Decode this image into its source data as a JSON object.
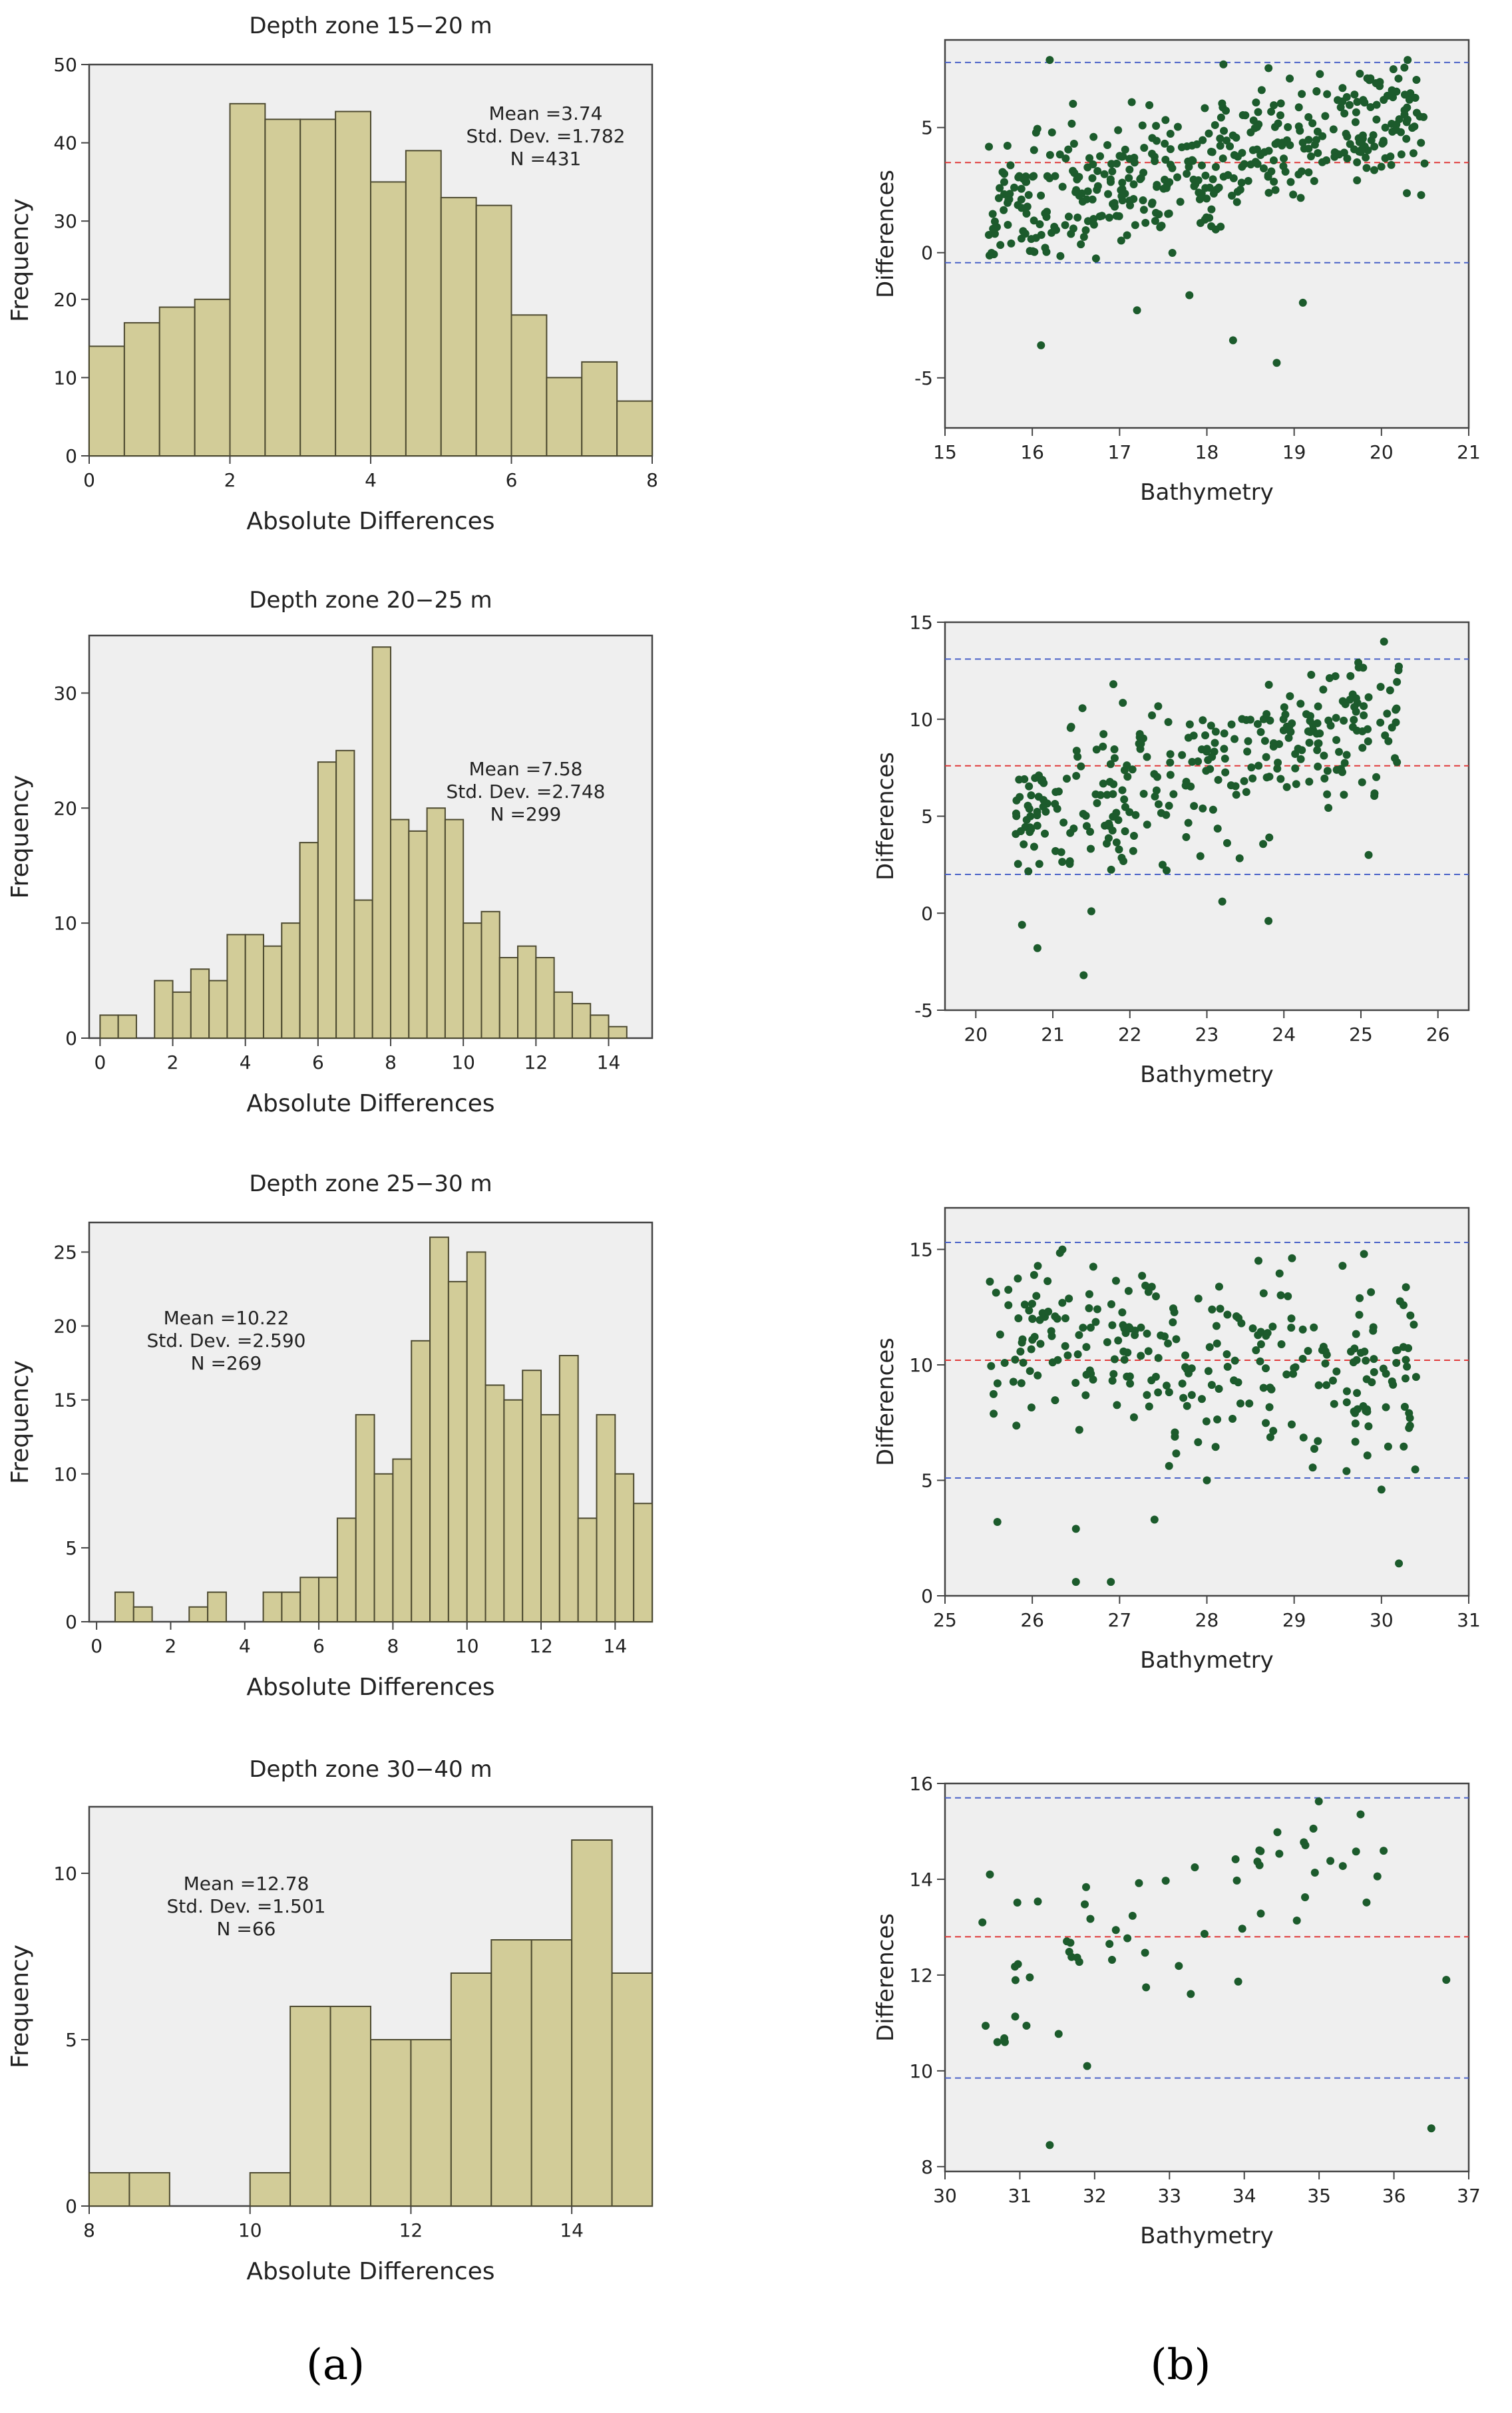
{
  "histograms": [
    {
      "title": "Depth zone 15−20 m",
      "xlabel": "Absolute Differences",
      "ylabel": "Frequency",
      "stats": [
        "Mean =3.74",
        "Std. Dev. =1.782",
        "N =431"
      ],
      "xlim": [
        0,
        8
      ],
      "xticks": [
        0,
        2,
        4,
        6,
        8
      ],
      "ylim": [
        0,
        50
      ],
      "yticks": [
        0,
        10,
        20,
        30,
        40,
        50
      ],
      "bins": [
        {
          "from": 0.0,
          "to": 0.5,
          "count": 14
        },
        {
          "from": 0.5,
          "to": 1.0,
          "count": 17
        },
        {
          "from": 1.0,
          "to": 1.5,
          "count": 19
        },
        {
          "from": 1.5,
          "to": 2.0,
          "count": 20
        },
        {
          "from": 2.0,
          "to": 2.5,
          "count": 45
        },
        {
          "from": 2.5,
          "to": 3.0,
          "count": 43
        },
        {
          "from": 3.0,
          "to": 3.5,
          "count": 43
        },
        {
          "from": 3.5,
          "to": 4.0,
          "count": 44
        },
        {
          "from": 4.0,
          "to": 4.5,
          "count": 35
        },
        {
          "from": 4.5,
          "to": 5.0,
          "count": 39
        },
        {
          "from": 5.0,
          "to": 5.5,
          "count": 33
        },
        {
          "from": 5.5,
          "to": 6.0,
          "count": 32
        },
        {
          "from": 6.0,
          "to": 6.5,
          "count": 18
        },
        {
          "from": 6.5,
          "to": 7.0,
          "count": 10
        },
        {
          "from": 7.0,
          "to": 7.5,
          "count": 12
        },
        {
          "from": 7.5,
          "to": 8.0,
          "count": 7
        }
      ]
    },
    {
      "title": "Depth zone 20−25 m",
      "xlabel": "Absolute Differences",
      "ylabel": "Frequency",
      "stats": [
        "Mean =7.58",
        "Std. Dev. =2.748",
        "N =299"
      ],
      "xlim": [
        -0.3,
        15.2
      ],
      "xticks": [
        0,
        2,
        4,
        6,
        8,
        10,
        12,
        14
      ],
      "ylim": [
        0,
        35
      ],
      "yticks": [
        0,
        10,
        20,
        30
      ],
      "bins": [
        {
          "from": 0.0,
          "to": 0.5,
          "count": 2
        },
        {
          "from": 0.5,
          "to": 1.0,
          "count": 2
        },
        {
          "from": 1.5,
          "to": 2.0,
          "count": 5
        },
        {
          "from": 2.0,
          "to": 2.5,
          "count": 4
        },
        {
          "from": 2.5,
          "to": 3.0,
          "count": 6
        },
        {
          "from": 3.0,
          "to": 3.5,
          "count": 5
        },
        {
          "from": 3.5,
          "to": 4.0,
          "count": 9
        },
        {
          "from": 4.0,
          "to": 4.5,
          "count": 9
        },
        {
          "from": 4.5,
          "to": 5.0,
          "count": 8
        },
        {
          "from": 5.0,
          "to": 5.5,
          "count": 10
        },
        {
          "from": 5.5,
          "to": 6.0,
          "count": 17
        },
        {
          "from": 6.0,
          "to": 6.5,
          "count": 24
        },
        {
          "from": 6.5,
          "to": 7.0,
          "count": 25
        },
        {
          "from": 7.0,
          "to": 7.5,
          "count": 12
        },
        {
          "from": 7.5,
          "to": 8.0,
          "count": 34
        },
        {
          "from": 8.0,
          "to": 8.5,
          "count": 19
        },
        {
          "from": 8.5,
          "to": 9.0,
          "count": 18
        },
        {
          "from": 9.0,
          "to": 9.5,
          "count": 20
        },
        {
          "from": 9.5,
          "to": 10.0,
          "count": 19
        },
        {
          "from": 10.0,
          "to": 10.5,
          "count": 10
        },
        {
          "from": 10.5,
          "to": 11.0,
          "count": 11
        },
        {
          "from": 11.0,
          "to": 11.5,
          "count": 7
        },
        {
          "from": 11.5,
          "to": 12.0,
          "count": 8
        },
        {
          "from": 12.0,
          "to": 12.5,
          "count": 7
        },
        {
          "from": 12.5,
          "to": 13.0,
          "count": 4
        },
        {
          "from": 13.0,
          "to": 13.5,
          "count": 3
        },
        {
          "from": 13.5,
          "to": 14.0,
          "count": 2
        },
        {
          "from": 14.0,
          "to": 14.5,
          "count": 1
        }
      ]
    },
    {
      "title": "Depth zone 25−30 m",
      "xlabel": "Absolute Differences",
      "ylabel": "Frequency",
      "stats": [
        "Mean =10.22",
        "Std. Dev. =2.590",
        "N =269"
      ],
      "xlim": [
        -0.2,
        15.0
      ],
      "xticks": [
        0,
        2,
        4,
        6,
        8,
        10,
        12,
        14
      ],
      "ylim": [
        0,
        27
      ],
      "yticks": [
        0,
        5,
        10,
        15,
        20,
        25
      ],
      "bins": [
        {
          "from": 0.5,
          "to": 1.0,
          "count": 2
        },
        {
          "from": 1.0,
          "to": 1.5,
          "count": 1
        },
        {
          "from": 2.5,
          "to": 3.0,
          "count": 1
        },
        {
          "from": 3.0,
          "to": 3.5,
          "count": 2
        },
        {
          "from": 4.5,
          "to": 5.0,
          "count": 2
        },
        {
          "from": 5.0,
          "to": 5.5,
          "count": 2
        },
        {
          "from": 5.5,
          "to": 6.0,
          "count": 3
        },
        {
          "from": 6.0,
          "to": 6.5,
          "count": 3
        },
        {
          "from": 6.5,
          "to": 7.0,
          "count": 7
        },
        {
          "from": 7.0,
          "to": 7.5,
          "count": 14
        },
        {
          "from": 7.5,
          "to": 8.0,
          "count": 10
        },
        {
          "from": 8.0,
          "to": 8.5,
          "count": 11
        },
        {
          "from": 8.5,
          "to": 9.0,
          "count": 19
        },
        {
          "from": 9.0,
          "to": 9.5,
          "count": 26
        },
        {
          "from": 9.5,
          "to": 10.0,
          "count": 23
        },
        {
          "from": 10.0,
          "to": 10.5,
          "count": 25
        },
        {
          "from": 10.5,
          "to": 11.0,
          "count": 16
        },
        {
          "from": 11.0,
          "to": 11.5,
          "count": 15
        },
        {
          "from": 11.5,
          "to": 12.0,
          "count": 17
        },
        {
          "from": 12.0,
          "to": 12.5,
          "count": 14
        },
        {
          "from": 12.5,
          "to": 13.0,
          "count": 18
        },
        {
          "from": 13.0,
          "to": 13.5,
          "count": 7
        },
        {
          "from": 13.5,
          "to": 14.0,
          "count": 14
        },
        {
          "from": 14.0,
          "to": 14.5,
          "count": 10
        },
        {
          "from": 14.5,
          "to": 15.0,
          "count": 8
        }
      ]
    },
    {
      "title": "Depth zone 30−40 m",
      "xlabel": "Absolute Differences",
      "ylabel": "Frequency",
      "stats": [
        "Mean =12.78",
        "Std. Dev. =1.501",
        "N =66"
      ],
      "xlim": [
        8,
        15
      ],
      "xticks": [
        8,
        10,
        12,
        14
      ],
      "ylim": [
        0,
        12
      ],
      "yticks": [
        0,
        5,
        10
      ],
      "bins": [
        {
          "from": 8.0,
          "to": 8.5,
          "count": 1
        },
        {
          "from": 8.5,
          "to": 9.0,
          "count": 1
        },
        {
          "from": 10.0,
          "to": 10.5,
          "count": 1
        },
        {
          "from": 10.5,
          "to": 11.0,
          "count": 6
        },
        {
          "from": 11.0,
          "to": 11.5,
          "count": 6
        },
        {
          "from": 11.5,
          "to": 12.0,
          "count": 5
        },
        {
          "from": 12.0,
          "to": 12.5,
          "count": 5
        },
        {
          "from": 12.5,
          "to": 13.0,
          "count": 7
        },
        {
          "from": 13.0,
          "to": 13.5,
          "count": 8
        },
        {
          "from": 13.5,
          "to": 14.0,
          "count": 8
        },
        {
          "from": 14.0,
          "to": 14.5,
          "count": 11
        },
        {
          "from": 14.5,
          "to": 15.0,
          "count": 7
        }
      ]
    }
  ],
  "scatters": [
    {
      "xlabel": "Bathymetry",
      "ylabel": "Differences",
      "xlim": [
        15,
        21
      ],
      "xticks": [
        15,
        16,
        17,
        18,
        19,
        20,
        21
      ],
      "ylim": [
        -7,
        8.5
      ],
      "yticks": [
        -5,
        0,
        5
      ],
      "mean": 3.6,
      "upper": 7.6,
      "lower": -0.4,
      "gen": {
        "n": 431,
        "xmin": 15.5,
        "xmax": 20.5,
        "slope": 0.78,
        "xref": 18,
        "yref": 3.6,
        "sd": 1.3,
        "seed": 11
      },
      "extra": [
        [
          16.1,
          -3.7
        ],
        [
          18.8,
          -4.4
        ],
        [
          18.3,
          -3.5
        ],
        [
          17.2,
          -2.3
        ],
        [
          19.1,
          -2.0
        ],
        [
          17.8,
          -1.7
        ],
        [
          16.2,
          7.7
        ],
        [
          20.3,
          7.7
        ]
      ]
    },
    {
      "xlabel": "Bathymetry",
      "ylabel": "Differences",
      "xlim": [
        19.6,
        26.4
      ],
      "xticks": [
        20,
        21,
        22,
        23,
        24,
        25,
        26
      ],
      "ylim": [
        -5,
        15
      ],
      "yticks": [
        -5,
        0,
        5,
        10,
        15
      ],
      "mean": 7.6,
      "upper": 13.1,
      "lower": 2.0,
      "gen": {
        "n": 299,
        "xmin": 20.5,
        "xmax": 25.5,
        "slope": 1.1,
        "xref": 23,
        "yref": 7.6,
        "sd": 1.8,
        "seed": 23
      },
      "extra": [
        [
          21.4,
          -3.2
        ],
        [
          20.8,
          -1.8
        ],
        [
          20.6,
          -0.6
        ],
        [
          21.5,
          0.1
        ],
        [
          23.2,
          0.6
        ],
        [
          23.8,
          -0.4
        ],
        [
          25.3,
          14.0
        ],
        [
          25.1,
          3.0
        ]
      ]
    },
    {
      "xlabel": "Bathymetry",
      "ylabel": "Differences",
      "xlim": [
        25,
        31
      ],
      "xticks": [
        25,
        26,
        27,
        28,
        29,
        30,
        31
      ],
      "ylim": [
        0,
        16.8
      ],
      "yticks": [
        0,
        5,
        10,
        15
      ],
      "mean": 10.2,
      "upper": 15.3,
      "lower": 5.1,
      "gen": {
        "n": 269,
        "xmin": 25.5,
        "xmax": 30.4,
        "slope": -0.45,
        "xref": 28,
        "yref": 10.2,
        "sd": 2.0,
        "seed": 37
      },
      "extra": [
        [
          26.5,
          0.6
        ],
        [
          26.9,
          0.6
        ],
        [
          30.2,
          1.4
        ],
        [
          25.6,
          3.2
        ],
        [
          26.5,
          2.9
        ],
        [
          27.4,
          3.3
        ],
        [
          28.0,
          5.0
        ],
        [
          29.6,
          5.4
        ],
        [
          30.0,
          4.6
        ],
        [
          29.8,
          14.8
        ]
      ]
    },
    {
      "xlabel": "Bathymetry",
      "ylabel": "Differences",
      "xlim": [
        30,
        37
      ],
      "xticks": [
        30,
        31,
        32,
        33,
        34,
        35,
        36,
        37
      ],
      "ylim": [
        7.9,
        16
      ],
      "yticks": [
        8,
        10,
        12,
        14,
        16
      ],
      "mean": 12.8,
      "upper": 15.7,
      "lower": 9.85,
      "gen": {
        "n": 58,
        "xmin": 30.5,
        "xmax": 35.9,
        "slope": 0.75,
        "xref": 33,
        "yref": 13.3,
        "sd": 0.8,
        "seed": 53
      },
      "extra": [
        [
          31.4,
          8.45
        ],
        [
          36.5,
          8.8
        ],
        [
          31.9,
          10.1
        ],
        [
          36.7,
          11.9
        ],
        [
          30.6,
          14.1
        ],
        [
          30.5,
          13.1
        ],
        [
          30.8,
          10.6
        ],
        [
          30.7,
          10.6
        ]
      ]
    }
  ],
  "panel_labels": [
    "(a)",
    "(b)"
  ],
  "colors": {
    "plot_bg": "#efefef",
    "bar_fill": "#d2cc98",
    "bar_stroke": "#4d4a30",
    "point": "#1c5b2c",
    "mean_line": "#e03a3a",
    "limit_line": "#4a62c8",
    "axis": "#444444",
    "text": "#222222"
  }
}
